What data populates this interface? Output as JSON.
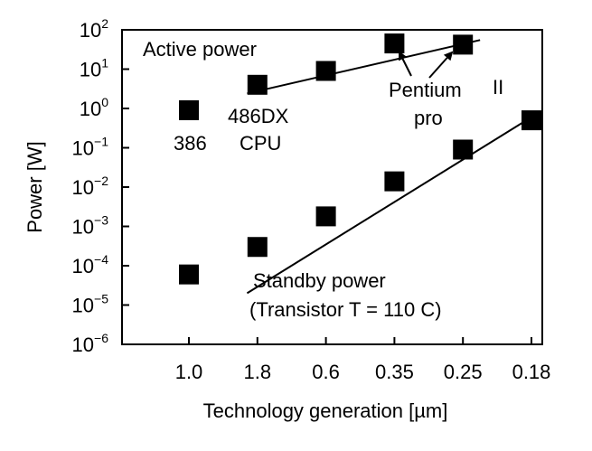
{
  "chart_data": {
    "type": "scatter",
    "xlabel": "Technology generation [µm]",
    "ylabel": "Power [W]",
    "yscale": "log",
    "ylim_exponent": [
      -6,
      2
    ],
    "categories": [
      "1.0",
      "1.8",
      "0.6",
      "0.35",
      "0.25",
      "0.18"
    ],
    "y_ticks": [
      {
        "base": "10",
        "exp": "2"
      },
      {
        "base": "10",
        "exp": "1"
      },
      {
        "base": "10",
        "exp": "0"
      },
      {
        "base": "10",
        "exp": "−1"
      },
      {
        "base": "10",
        "exp": "−2"
      },
      {
        "base": "10",
        "exp": "−3"
      },
      {
        "base": "10",
        "exp": "−4"
      },
      {
        "base": "10",
        "exp": "−5"
      },
      {
        "base": "10",
        "exp": "−6"
      }
    ],
    "series": [
      {
        "name": "Active power",
        "points": [
          {
            "category": "1.0",
            "value": 0.9
          },
          {
            "category": "1.8",
            "value": 4
          },
          {
            "category": "0.6",
            "value": 9
          },
          {
            "category": "0.35",
            "value": 45
          },
          {
            "category": "0.25",
            "value": 42
          }
        ],
        "trend": [
          {
            "x": 0.85,
            "value": 2.4
          },
          {
            "x": 4.25,
            "value": 55
          }
        ]
      },
      {
        "name": "Standby power",
        "points": [
          {
            "category": "1.0",
            "value": 6e-05
          },
          {
            "category": "1.8",
            "value": 0.0003
          },
          {
            "category": "0.6",
            "value": 0.0018
          },
          {
            "category": "0.35",
            "value": 0.014
          },
          {
            "category": "0.25",
            "value": 0.09
          },
          {
            "category": "0.18",
            "value": 0.5
          }
        ],
        "trend": [
          {
            "x": 0.85,
            "value": 2e-05
          },
          {
            "x": 5.0,
            "value": 0.6
          }
        ]
      }
    ],
    "annotations": {
      "active_power": "Active power",
      "standby_power": "Standby power",
      "standby_condition": "(Transistor T = 110 C)",
      "p386": "386",
      "p486_line1": "486DX",
      "p486_line2": "CPU",
      "pentium_line1": "Pentium",
      "pentium_line2": "pro",
      "pentium_ii": "II"
    },
    "grid": false,
    "legend": "none"
  }
}
